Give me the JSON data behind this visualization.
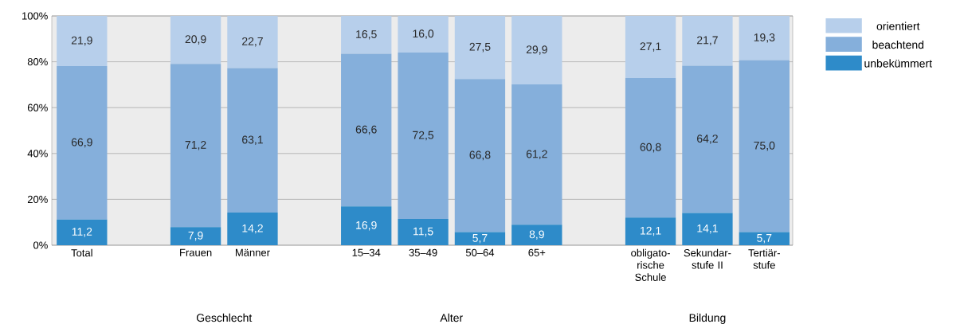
{
  "chart_data": {
    "type": "bar",
    "stacked": true,
    "categories": [
      "Total",
      null,
      "Frauen",
      "Männer",
      null,
      "15–34",
      "35–49",
      "50–64",
      "65+",
      null,
      "obligato-rische Schule",
      "Sekundar-stufe II",
      "Tertiär-stufe"
    ],
    "series": [
      {
        "name": "unbekümmert",
        "color": "#2e8bc9",
        "values": [
          11.2,
          null,
          7.9,
          14.2,
          null,
          16.9,
          11.5,
          5.7,
          8.9,
          null,
          12.1,
          14.1,
          5.7
        ],
        "value_labels": [
          "11,2",
          null,
          "7,9",
          "14,2",
          null,
          "16,9",
          "11,5",
          "5,7",
          "8,9",
          null,
          "12,1",
          "14,1",
          "5,7"
        ]
      },
      {
        "name": "beachtend",
        "color": "#85afdb",
        "values": [
          66.9,
          null,
          71.2,
          63.1,
          null,
          66.6,
          72.5,
          66.8,
          61.2,
          null,
          60.8,
          64.2,
          75.0
        ],
        "value_labels": [
          "66,9",
          null,
          "71,2",
          "63,1",
          null,
          "66,6",
          "72,5",
          "66,8",
          "61,2",
          null,
          "60,8",
          "64,2",
          "75,0"
        ]
      },
      {
        "name": "orientiert",
        "color": "#b7cfeb",
        "values": [
          21.9,
          null,
          20.9,
          22.7,
          null,
          16.5,
          16.0,
          27.5,
          29.9,
          null,
          27.1,
          21.7,
          19.3
        ],
        "value_labels": [
          "21,9",
          null,
          "20,9",
          "22,7",
          null,
          "16,5",
          "16,0",
          "27,5",
          "29,9",
          null,
          "27,1",
          "21,7",
          "19,3"
        ]
      }
    ],
    "ylim": [
      0,
      100
    ],
    "yticks": [
      {
        "value": 0,
        "label": "0%"
      },
      {
        "value": 20,
        "label": "20%"
      },
      {
        "value": 40,
        "label": "40%"
      },
      {
        "value": 60,
        "label": "60%"
      },
      {
        "value": 80,
        "label": "80%"
      },
      {
        "value": 100,
        "label": "100%"
      }
    ],
    "grid": "y",
    "legend": "top right",
    "annotations": [
      "Geschlecht",
      "Alter",
      "Bildung"
    ]
  }
}
